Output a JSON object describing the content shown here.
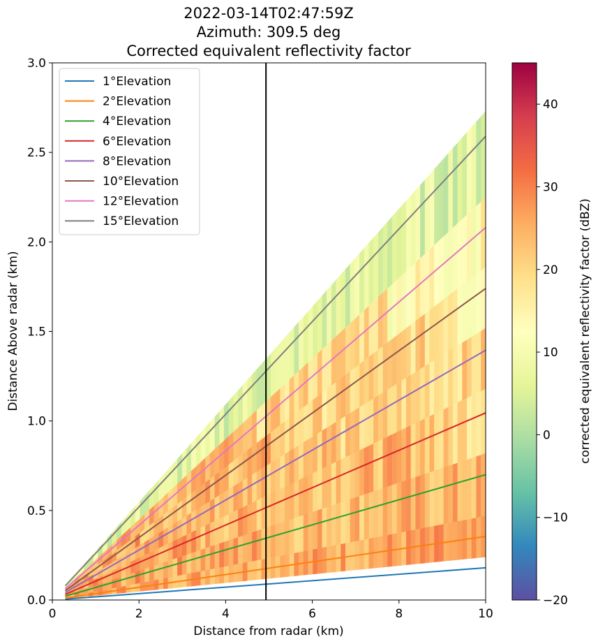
{
  "chart_data": {
    "type": "heatmap",
    "title": [
      "2022-03-14T02:47:59Z",
      "Azimuth: 309.5 deg",
      "Corrected equivalent reflectivity factor"
    ],
    "xlabel": "Distance from radar (km)",
    "ylabel": "Distance Above radar  (km)",
    "xlim": [
      0,
      10
    ],
    "ylim": [
      0,
      3.0
    ],
    "xticks": [
      0,
      2,
      4,
      6,
      8,
      10
    ],
    "xtick_labels": [
      "0",
      "2",
      "4",
      "6",
      "8",
      "10"
    ],
    "yticks": [
      0,
      0.5,
      1.0,
      1.5,
      2.0,
      2.5,
      3.0
    ],
    "ytick_labels": [
      "0.0",
      "0.5",
      "1.0",
      "1.5",
      "2.0",
      "2.5",
      "3.0"
    ],
    "grid": false,
    "legend_placement": "upper-left",
    "series": [
      {
        "name": "1$^\\circ$Elevation",
        "label": "1°Elevation",
        "color": "#1f77b4",
        "x": [
          0.3,
          10
        ],
        "y": [
          0.005,
          0.18
        ]
      },
      {
        "name": "2$^\\circ$Elevation",
        "label": "2°Elevation",
        "color": "#ff7f0e",
        "x": [
          0.3,
          10
        ],
        "y": [
          0.011,
          0.355
        ]
      },
      {
        "name": "4$^\\circ$Elevation",
        "label": "4°Elevation",
        "color": "#2ca02c",
        "x": [
          0.3,
          10
        ],
        "y": [
          0.021,
          0.7
        ]
      },
      {
        "name": "6$^\\circ$Elevation",
        "label": "6°Elevation",
        "color": "#d62728",
        "x": [
          0.3,
          10
        ],
        "y": [
          0.032,
          1.045
        ]
      },
      {
        "name": "8$^\\circ$Elevation",
        "label": "8°Elevation",
        "color": "#9467bd",
        "x": [
          0.3,
          10
        ],
        "y": [
          0.042,
          1.395
        ]
      },
      {
        "name": "10$^\\circ$Elevation",
        "label": "10°Elevation",
        "color": "#8c564b",
        "x": [
          0.3,
          10
        ],
        "y": [
          0.053,
          1.74
        ]
      },
      {
        "name": "12$^\\circ$Elevation",
        "label": "12°Elevation",
        "color": "#e377c2",
        "x": [
          0.3,
          10
        ],
        "y": [
          0.064,
          2.08
        ]
      },
      {
        "name": "15$^\\circ$Elevation",
        "label": "15°Elevation",
        "color": "#7f7f7f",
        "x": [
          0.3,
          10
        ],
        "y": [
          0.08,
          2.59
        ]
      }
    ],
    "vertical_line": {
      "x": 4.93,
      "color": "#000000"
    },
    "heatmap": {
      "colormap": "Spectral_r",
      "range_dbz": [
        -20,
        45
      ],
      "coverage": "radar wedge from ~0.3 km to 10 km, heights ~0 to ~2.95 km",
      "typical_values_dbz": {
        "low_levels": 25,
        "mid_levels": 20,
        "upper_levels": 5
      }
    },
    "colorbar": {
      "label": "corrected equivalent reflectivity factor (dBZ)",
      "ticks": [
        -20,
        -10,
        0,
        10,
        20,
        30,
        40
      ],
      "tick_labels": [
        "−20",
        "−10",
        "0",
        "10",
        "20",
        "30",
        "40"
      ],
      "range": [
        -20,
        45
      ],
      "colors": [
        "#5e4fa2",
        "#3288bd",
        "#66c2a5",
        "#abdda4",
        "#e6f598",
        "#ffffbf",
        "#fee08b",
        "#fdae61",
        "#f46d43",
        "#d53e4f",
        "#9e0142"
      ]
    }
  }
}
